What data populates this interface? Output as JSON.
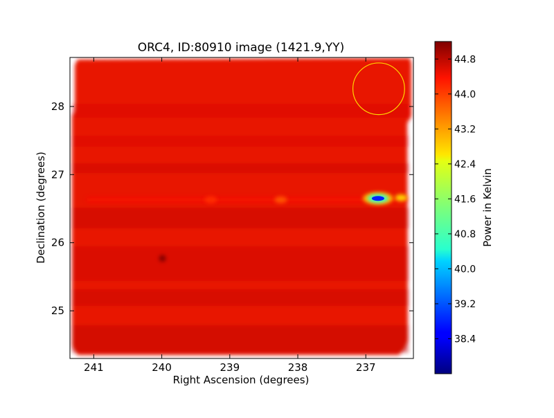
{
  "chart_data": {
    "type": "heatmap",
    "title": "ORC4, ID:80910 image (1421.9,YY)",
    "xlabel": "Right Ascension (degrees)",
    "ylabel": "Declination (degrees)",
    "xlim": [
      241.35,
      236.3
    ],
    "ylim": [
      24.3,
      28.72
    ],
    "x_ticks": [
      "241",
      "240",
      "239",
      "238",
      "237"
    ],
    "y_ticks": [
      "25",
      "26",
      "27",
      "28"
    ],
    "colorbar": {
      "label": "Power in Kelvin",
      "range": [
        37.6,
        45.2
      ],
      "ticks": [
        "38.4",
        "39.2",
        "40.0",
        "40.8",
        "41.6",
        "42.4",
        "43.2",
        "44.0",
        "44.8"
      ],
      "colormap": "jet"
    },
    "background_level": 44.9,
    "features": [
      {
        "kind": "stripe",
        "dec": 26.63,
        "ra_from": 241.1,
        "ra_to": 236.4,
        "value": 44.2
      },
      {
        "kind": "spot",
        "ra": 236.82,
        "dec": 26.65,
        "value": 38.8
      },
      {
        "kind": "spot",
        "ra": 236.48,
        "dec": 26.66,
        "value": 42.6
      },
      {
        "kind": "spot",
        "ra": 238.25,
        "dec": 26.63,
        "value": 43.6
      },
      {
        "kind": "spot",
        "ra": 239.28,
        "dec": 26.63,
        "value": 43.9
      },
      {
        "kind": "spot",
        "ra": 239.99,
        "dec": 25.77,
        "value": 45.2
      }
    ],
    "annotations": [
      {
        "kind": "circle",
        "ra": 236.81,
        "dec": 28.26,
        "radius_deg": 0.38,
        "color": "#ffd700"
      }
    ]
  }
}
